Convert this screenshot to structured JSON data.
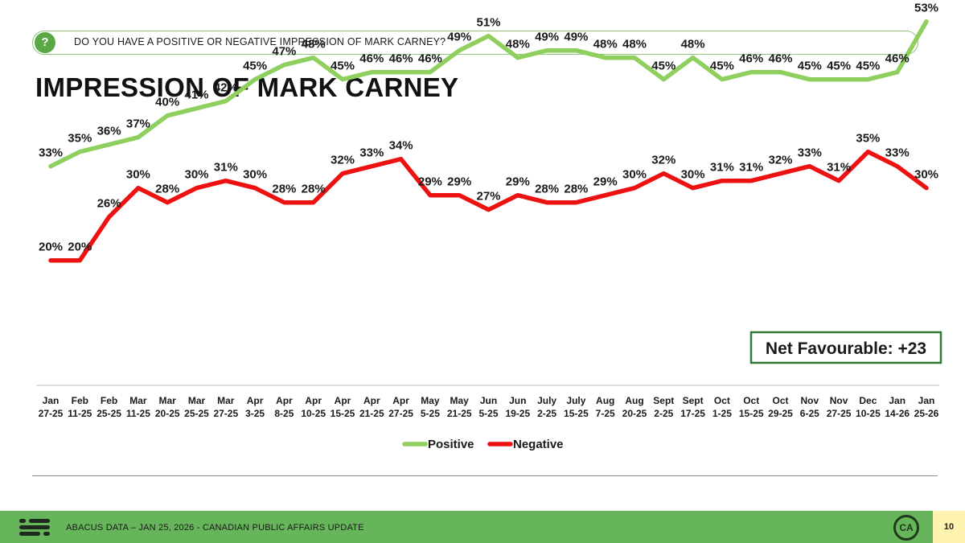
{
  "question": "DO YOU HAVE A POSITIVE OR NEGATIVE IMPRESSION OF MARK CARNEY?",
  "title": "IMPRESSION OF MARK CARNEY",
  "footer": {
    "text": "ABACUS DATA – JAN 25, 2026 - CANADIAN PUBLIC AFFAIRS UPDATE",
    "badge": "CA",
    "page": "10"
  },
  "net_box": {
    "label": "Net Favourable: +23"
  },
  "colors": {
    "positive": "#8fcf5e",
    "negative": "#ee1111",
    "accent": "#5aa845",
    "net_border": "#2f7a35"
  },
  "icons": {
    "question": "question-bubble-icon",
    "logo": "abacus-logo-icon"
  },
  "chart_data": {
    "type": "line",
    "categories": [
      [
        "Jan",
        "27-25"
      ],
      [
        "Feb",
        "11-25"
      ],
      [
        "Feb",
        "25-25"
      ],
      [
        "Mar",
        "11-25"
      ],
      [
        "Mar",
        "20-25"
      ],
      [
        "Mar",
        "25-25"
      ],
      [
        "Mar",
        "27-25"
      ],
      [
        "Apr",
        "3-25"
      ],
      [
        "Apr",
        "8-25"
      ],
      [
        "Apr",
        "10-25"
      ],
      [
        "Apr",
        "15-25"
      ],
      [
        "Apr",
        "21-25"
      ],
      [
        "Apr",
        "27-25"
      ],
      [
        "May",
        "5-25"
      ],
      [
        "May",
        "21-25"
      ],
      [
        "Jun",
        "5-25"
      ],
      [
        "Jun",
        "19-25"
      ],
      [
        "July",
        "2-25"
      ],
      [
        "July",
        "15-25"
      ],
      [
        "Aug",
        "7-25"
      ],
      [
        "Aug",
        "20-25"
      ],
      [
        "Sept",
        "2-25"
      ],
      [
        "Sept",
        "17-25"
      ],
      [
        "Oct",
        "1-25"
      ],
      [
        "Oct",
        "15-25"
      ],
      [
        "Oct",
        "29-25"
      ],
      [
        "Nov",
        "6-25"
      ],
      [
        "Nov",
        "27-25"
      ],
      [
        "Dec",
        "10-25"
      ],
      [
        "Jan",
        "14-26"
      ],
      [
        "Jan",
        "25-26"
      ]
    ],
    "series": [
      {
        "name": "Positive",
        "values": [
          33,
          35,
          36,
          37,
          40,
          41,
          42,
          45,
          47,
          48,
          45,
          46,
          46,
          46,
          49,
          51,
          48,
          49,
          49,
          48,
          48,
          45,
          48,
          45,
          46,
          46,
          45,
          45,
          45,
          46,
          53
        ]
      },
      {
        "name": "Negative",
        "values": [
          20,
          20,
          26,
          30,
          28,
          30,
          31,
          30,
          28,
          28,
          32,
          33,
          34,
          29,
          29,
          27,
          29,
          28,
          28,
          29,
          30,
          32,
          30,
          31,
          31,
          32,
          33,
          31,
          35,
          33,
          30
        ]
      }
    ],
    "value_format": "percent",
    "legend": "bottom-center",
    "grid": false
  }
}
